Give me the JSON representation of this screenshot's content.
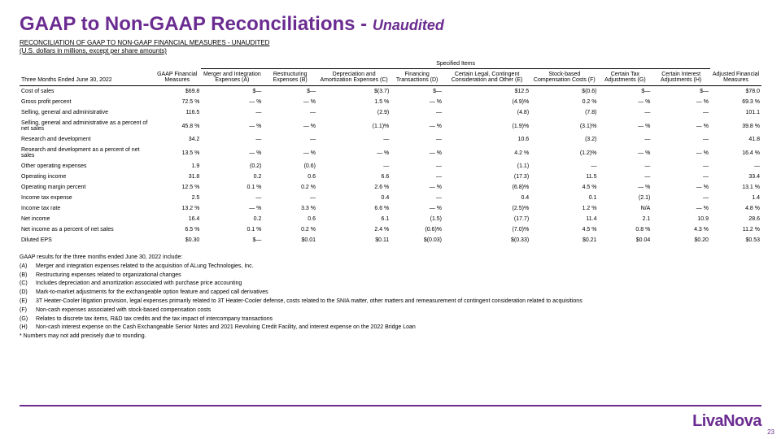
{
  "title_main": "GAAP to Non-GAAP Reconciliations - ",
  "title_sub": "Unaudited",
  "subtitle": "RECONCILIATION OF GAAP TO NON-GAAP FINANCIAL MEASURES - UNAUDITED",
  "subtitle2": "(U.S. dollars in millions, except per share amounts)",
  "spec_header": "Specified Items",
  "period_label": "Three Months Ended\nJune 30, 2022",
  "columns": [
    "GAAP Financial Measures",
    "Merger and Integration Expenses (A)",
    "Restructuring Expenses (B)",
    "Depreciation and Amortization Expenses (C)",
    "Financing Transactions (D)",
    "Certain Legal, Contingent Consideration and Other (E)",
    "Stock-based Compensation Costs (F)",
    "Certain Tax Adjustments (G)",
    "Certain Interest Adjustments (H)",
    "Adjusted Financial Measures"
  ],
  "rows": [
    {
      "label": "Cost of sales",
      "v": [
        "$69.8",
        "$—",
        "$—",
        "$(3.7)",
        "$—",
        "$12.5",
        "$(0.6)",
        "$—",
        "$—",
        "$78.0"
      ]
    },
    {
      "label": "Gross profit percent",
      "v": [
        "72.5 %",
        "— %",
        "— %",
        "1.5 %",
        "— %",
        "(4.9)%",
        "0.2 %",
        "— %",
        "— %",
        "69.3 %"
      ]
    },
    {
      "label": "Selling, general and administrative",
      "v": [
        "116.5",
        "—",
        "—",
        "(2.9)",
        "—",
        "(4.8)",
        "(7.8)",
        "—",
        "—",
        "101.1"
      ]
    },
    {
      "label": "Selling, general and administrative as a percent of net sales",
      "v": [
        "45.8 %",
        "— %",
        "— %",
        "(1.1)%",
        "— %",
        "(1.9)%",
        "(3.1)%",
        "— %",
        "— %",
        "39.8 %"
      ]
    },
    {
      "label": "Research and development",
      "v": [
        "34.2",
        "—",
        "—",
        "—",
        "—",
        "10.6",
        "(3.2)",
        "—",
        "—",
        "41.8"
      ]
    },
    {
      "label": "Research and development as a percent of net sales",
      "v": [
        "13.5 %",
        "— %",
        "— %",
        "— %",
        "— %",
        "4.2 %",
        "(1.2)%",
        "— %",
        "— %",
        "16.4 %"
      ]
    },
    {
      "label": "Other operating expenses",
      "v": [
        "1.9",
        "(0.2)",
        "(0.6)",
        "—",
        "—",
        "(1.1)",
        "—",
        "—",
        "—",
        "—"
      ]
    },
    {
      "label": "Operating income",
      "v": [
        "31.8",
        "0.2",
        "0.6",
        "6.6",
        "—",
        "(17.3)",
        "11.5",
        "—",
        "—",
        "33.4"
      ]
    },
    {
      "label": "Operating margin percent",
      "v": [
        "12.5 %",
        "0.1 %",
        "0.2 %",
        "2.6 %",
        "— %",
        "(6.8)%",
        "4.5 %",
        "— %",
        "— %",
        "13.1 %"
      ]
    },
    {
      "label": "Income tax expense",
      "v": [
        "2.5",
        "—",
        "—",
        "0.4",
        "—",
        "0.4",
        "0.1",
        "(2.1)",
        "—",
        "1.4"
      ]
    },
    {
      "label": "Income tax rate",
      "v": [
        "13.2 %",
        "— %",
        "3.3 %",
        "6.6 %",
        "— %",
        "(2.5)%",
        "1.2 %",
        "N/A",
        "— %",
        "4.8 %"
      ]
    },
    {
      "label": "Net income",
      "v": [
        "16.4",
        "0.2",
        "0.6",
        "6.1",
        "(1.5)",
        "(17.7)",
        "11.4",
        "2.1",
        "10.9",
        "28.6"
      ]
    },
    {
      "label": "Net income as a percent of net sales",
      "v": [
        "6.5 %",
        "0.1 %",
        "0.2 %",
        "2.4 %",
        "(0.6)%",
        "(7.0)%",
        "4.5 %",
        "0.8 %",
        "4.3 %",
        "11.2 %"
      ]
    },
    {
      "label": "Diluted EPS",
      "v": [
        "$0.30",
        "$—",
        "$0.01",
        "$0.11",
        "$(0.03)",
        "$(0.33)",
        "$0.21",
        "$0.04",
        "$0.20",
        "$0.53"
      ]
    }
  ],
  "notes_intro": "GAAP results for the three months ended June 30, 2022 include:",
  "notes": [
    {
      "k": "(A)",
      "t": "Merger and integration expenses related to the acquisition of ALung Technologies, Inc."
    },
    {
      "k": "(B)",
      "t": "Restructuring expenses related to organizational changes"
    },
    {
      "k": "(C)",
      "t": "Includes depreciation and amortization associated with purchase price accounting"
    },
    {
      "k": "(D)",
      "t": "Mark-to-market adjustments for the exchangeable option feature and capped call derivatives"
    },
    {
      "k": "(E)",
      "t": "3T Heater-Cooler litigation provision, legal expenses primarily related to 3T Heater-Cooler defense, costs related to the SNIA matter, other matters and remeasurement of contingent consideration related to acquisitions"
    },
    {
      "k": "(F)",
      "t": "Non-cash expenses associated with stock-based compensation costs"
    },
    {
      "k": "(G)",
      "t": "Relates to discrete tax items, R&D tax credits and the tax impact of intercompany transactions"
    },
    {
      "k": "(H)",
      "t": "Non-cash interest expense on the Cash Exchangeable Senior Notes and 2021 Revolving Credit Facility, and interest expense on the 2022 Bridge Loan"
    }
  ],
  "rounding_note": "* Numbers may not add precisely due to rounding.",
  "logo": "LivaNova",
  "pagenum": "23",
  "colors": {
    "brand": "#6b2c91"
  }
}
